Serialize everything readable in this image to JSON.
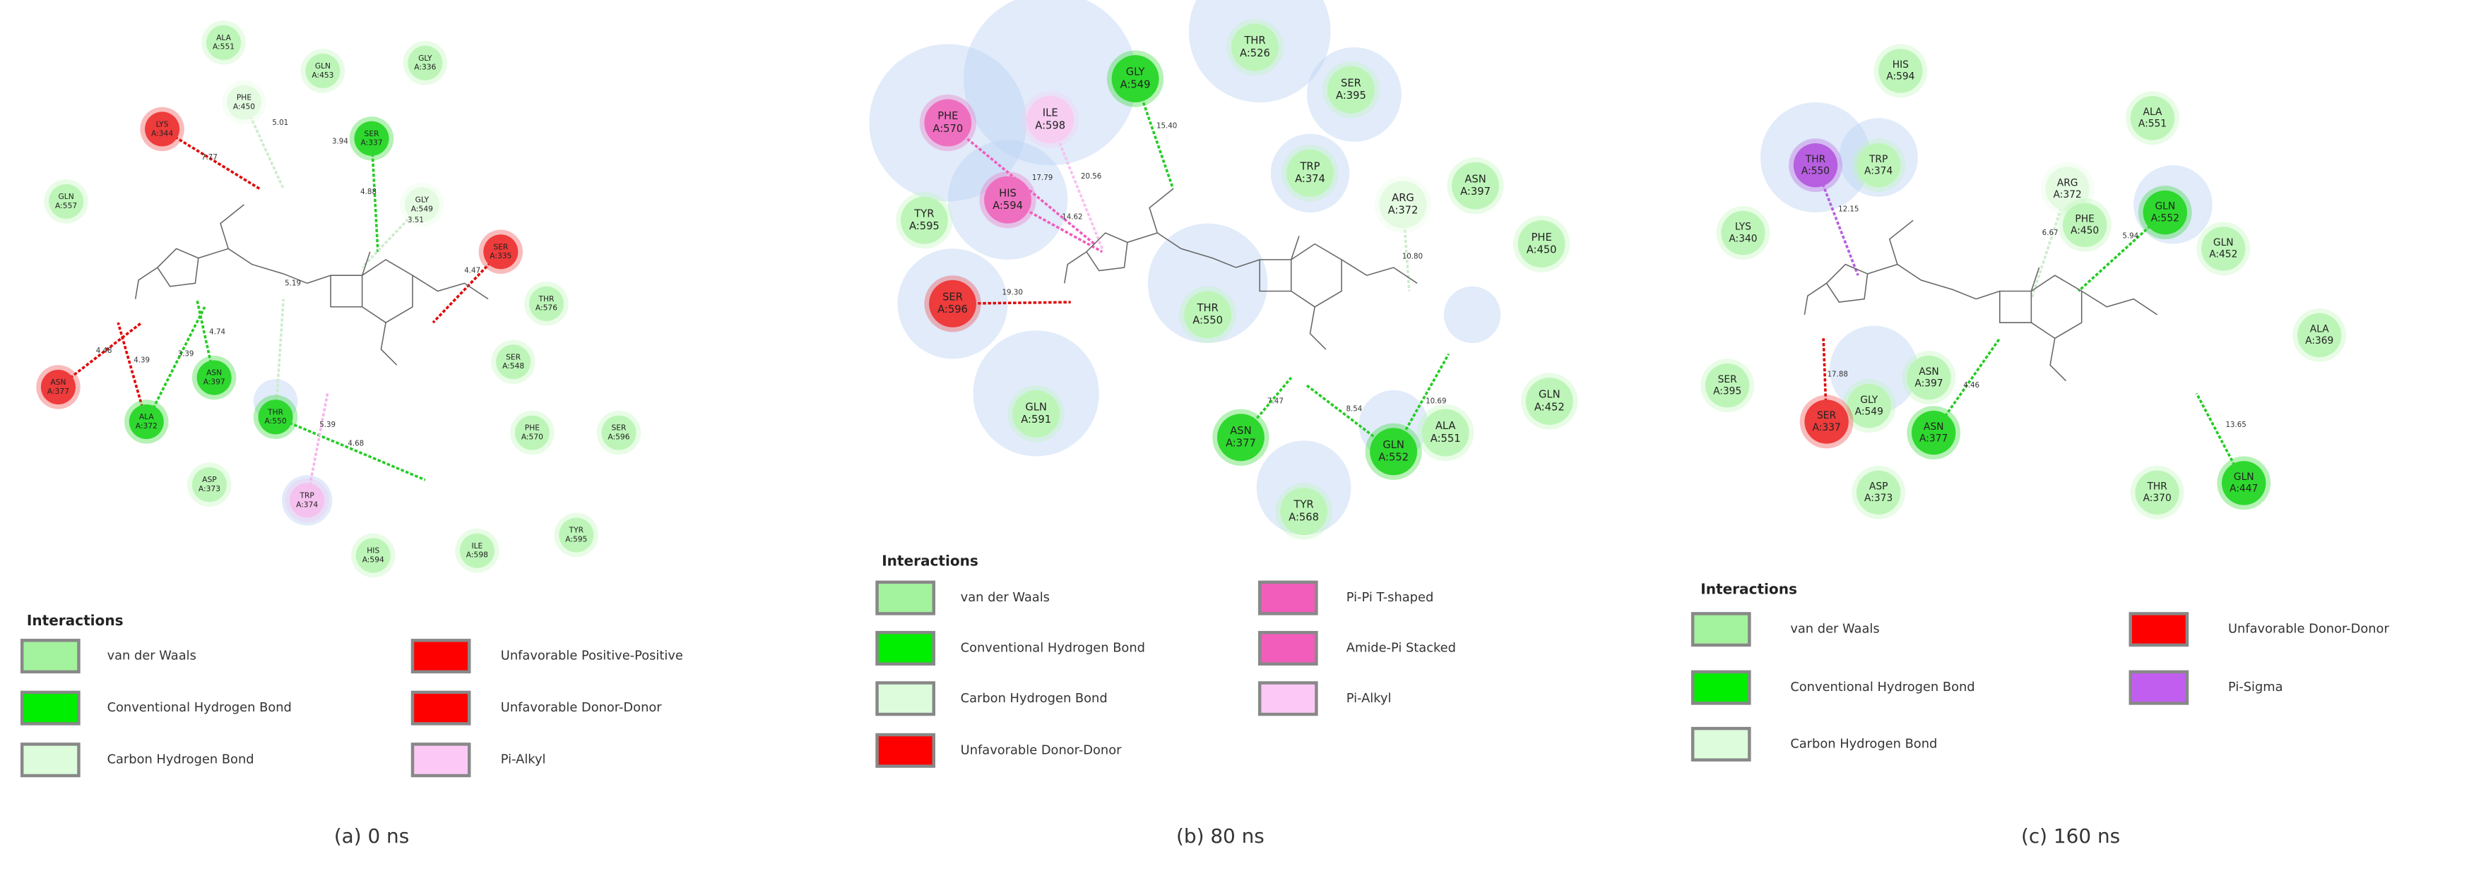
{
  "panels": [
    {
      "caption": "(a) 0 ns",
      "residues": [
        {
          "name": "ALA",
          "chain": "A:551",
          "color": "#bdf5b8"
        },
        {
          "name": "GLN",
          "chain": "A:453",
          "color": "#bdf5b8"
        },
        {
          "name": "GLY",
          "chain": "A:336",
          "color": "#bdf5b8"
        },
        {
          "name": "PHE",
          "chain": "A:450",
          "color": "#e4fbe2"
        },
        {
          "name": "LYS",
          "chain": "A:344",
          "color": "#ee3b3b"
        },
        {
          "name": "SER",
          "chain": "A:337",
          "color": "#2ed82e"
        },
        {
          "name": "GLN",
          "chain": "A:557",
          "color": "#bdf5b8"
        },
        {
          "name": "GLY",
          "chain": "A:549",
          "color": "#e4fbe2"
        },
        {
          "name": "SER",
          "chain": "A:335",
          "color": "#ee3b3b"
        },
        {
          "name": "THR",
          "chain": "A:576",
          "color": "#bdf5b8"
        },
        {
          "name": "SER",
          "chain": "A:548",
          "color": "#bdf5b8"
        },
        {
          "name": "ASN",
          "chain": "A:377",
          "color": "#ee3b3b"
        },
        {
          "name": "ASN",
          "chain": "A:397",
          "color": "#2ed82e"
        },
        {
          "name": "ALA",
          "chain": "A:372",
          "color": "#2ed82e"
        },
        {
          "name": "THR",
          "chain": "A:550",
          "color": "#2ed82e"
        },
        {
          "name": "PHE",
          "chain": "A:570",
          "color": "#bdf5b8"
        },
        {
          "name": "SER",
          "chain": "A:596",
          "color": "#bdf5b8"
        },
        {
          "name": "ASP",
          "chain": "A:373",
          "color": "#bdf5b8"
        },
        {
          "name": "TRP",
          "chain": "A:374",
          "color": "#f5c2ef"
        },
        {
          "name": "TYR",
          "chain": "A:595",
          "color": "#bdf5b8"
        },
        {
          "name": "HIS",
          "chain": "A:594",
          "color": "#bdf5b8"
        },
        {
          "name": "ILE",
          "chain": "A:598",
          "color": "#bdf5b8"
        }
      ],
      "distances": [
        "7.77",
        "5.01",
        "3.94",
        "4.88",
        "3.51",
        "4.47",
        "5.19",
        "4.74",
        "4.48",
        "4.39",
        "3.39",
        "5.39",
        "4.68"
      ],
      "legend": {
        "title": "Interactions",
        "items": [
          {
            "label": "van der Waals",
            "color": "#a3f29d"
          },
          {
            "label": "Conventional Hydrogen Bond",
            "color": "#00ee00"
          },
          {
            "label": "Carbon Hydrogen Bond",
            "color": "#dcfcdc"
          },
          {
            "label": "Unfavorable Positive-Positive",
            "color": "#ff0000"
          },
          {
            "label": "Unfavorable Donor-Donor",
            "color": "#ff0000"
          },
          {
            "label": "Pi-Alkyl",
            "color": "#fcc8f5"
          }
        ]
      }
    },
    {
      "caption": "(b) 80 ns",
      "residues": [
        {
          "name": "THR",
          "chain": "A:526",
          "color": "#bdf5b8"
        },
        {
          "name": "GLY",
          "chain": "A:549",
          "color": "#2ed82e"
        },
        {
          "name": "SER",
          "chain": "A:395",
          "color": "#bdf5b8"
        },
        {
          "name": "PHE",
          "chain": "A:570",
          "color": "#ee6fc0"
        },
        {
          "name": "ILE",
          "chain": "A:598",
          "color": "#f7cdf1"
        },
        {
          "name": "TRP",
          "chain": "A:374",
          "color": "#bdf5b8"
        },
        {
          "name": "ASN",
          "chain": "A:397",
          "color": "#bdf5b8"
        },
        {
          "name": "ARG",
          "chain": "A:372",
          "color": "#e4fbe2"
        },
        {
          "name": "HIS",
          "chain": "A:594",
          "color": "#ee6fc0"
        },
        {
          "name": "TYR",
          "chain": "A:595",
          "color": "#bdf5b8"
        },
        {
          "name": "PHE",
          "chain": "A:450",
          "color": "#bdf5b8"
        },
        {
          "name": "SER",
          "chain": "A:596",
          "color": "#ee3b3b"
        },
        {
          "name": "THR",
          "chain": "A:550",
          "color": "#bdf5b8"
        },
        {
          "name": "GLN",
          "chain": "A:591",
          "color": "#bdf5b8"
        },
        {
          "name": "GLN",
          "chain": "A:452",
          "color": "#bdf5b8"
        },
        {
          "name": "ASN",
          "chain": "A:377",
          "color": "#2ed82e"
        },
        {
          "name": "GLN",
          "chain": "A:552",
          "color": "#2ed82e"
        },
        {
          "name": "ALA",
          "chain": "A:551",
          "color": "#bdf5b8"
        },
        {
          "name": "TYR",
          "chain": "A:568",
          "color": "#bdf5b8"
        }
      ],
      "distances": [
        "15.40",
        "17.79",
        "20.56",
        "14.62",
        "19.30",
        "10.80",
        "7.47",
        "8.54",
        "10.69"
      ],
      "legend": {
        "title": "Interactions",
        "items": [
          {
            "label": "van der Waals",
            "color": "#a3f29d"
          },
          {
            "label": "Conventional Hydrogen Bond",
            "color": "#00ee00"
          },
          {
            "label": "Carbon Hydrogen Bond",
            "color": "#dcfcdc"
          },
          {
            "label": "Unfavorable Donor-Donor",
            "color": "#ff0000"
          },
          {
            "label": "Pi-Pi T-shaped",
            "color": "#f25cba"
          },
          {
            "label": "Amide-Pi Stacked",
            "color": "#f25cba"
          },
          {
            "label": "Pi-Alkyl",
            "color": "#fcc8f5"
          }
        ]
      }
    },
    {
      "caption": "(c) 160 ns",
      "residues": [
        {
          "name": "HIS",
          "chain": "A:594",
          "color": "#bdf5b8"
        },
        {
          "name": "ALA",
          "chain": "A:551",
          "color": "#bdf5b8"
        },
        {
          "name": "THR",
          "chain": "A:550",
          "color": "#b75fe0"
        },
        {
          "name": "TRP",
          "chain": "A:374",
          "color": "#bdf5b8"
        },
        {
          "name": "ARG",
          "chain": "A:372",
          "color": "#e4fbe2"
        },
        {
          "name": "GLN",
          "chain": "A:552",
          "color": "#2ed82e"
        },
        {
          "name": "PHE",
          "chain": "A:450",
          "color": "#bdf5b8"
        },
        {
          "name": "LYS",
          "chain": "A:340",
          "color": "#bdf5b8"
        },
        {
          "name": "GLN",
          "chain": "A:452",
          "color": "#bdf5b8"
        },
        {
          "name": "ALA",
          "chain": "A:369",
          "color": "#bdf5b8"
        },
        {
          "name": "SER",
          "chain": "A:395",
          "color": "#bdf5b8"
        },
        {
          "name": "ASN",
          "chain": "A:397",
          "color": "#bdf5b8"
        },
        {
          "name": "GLY",
          "chain": "A:549",
          "color": "#bdf5b8"
        },
        {
          "name": "SER",
          "chain": "A:337",
          "color": "#ee3b3b"
        },
        {
          "name": "ASN",
          "chain": "A:377",
          "color": "#2ed82e"
        },
        {
          "name": "ASP",
          "chain": "A:373",
          "color": "#bdf5b8"
        },
        {
          "name": "THR",
          "chain": "A:370",
          "color": "#bdf5b8"
        },
        {
          "name": "GLN",
          "chain": "A:447",
          "color": "#2ed82e"
        }
      ],
      "distances": [
        "12.15",
        "6.67",
        "5.94",
        "17.88",
        "4.46",
        "13.65"
      ],
      "legend": {
        "title": "Interactions",
        "items": [
          {
            "label": "van der Waals",
            "color": "#a3f29d"
          },
          {
            "label": "Conventional Hydrogen Bond",
            "color": "#00ee00"
          },
          {
            "label": "Carbon Hydrogen Bond",
            "color": "#dcfcdc"
          },
          {
            "label": "Unfavorable Donor-Donor",
            "color": "#ff0000"
          },
          {
            "label": "Pi-Sigma",
            "color": "#c15ef0"
          }
        ]
      }
    }
  ]
}
